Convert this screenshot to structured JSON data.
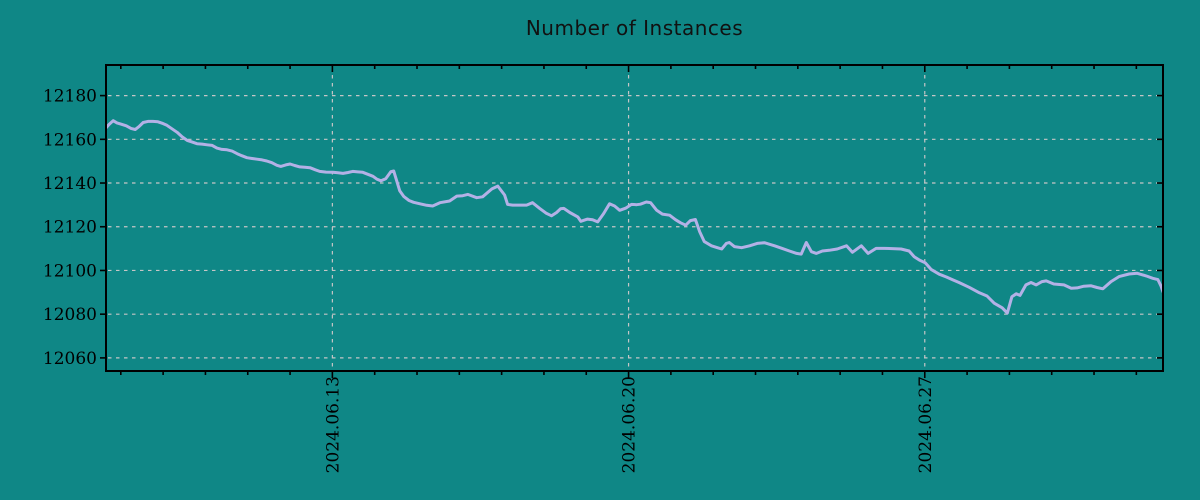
{
  "window": {
    "title": "Number of Instances"
  },
  "style": {
    "background_color": "#0f8786",
    "line_color": "#b3b1e6",
    "grid_color": "#c6c6c6",
    "axis_color": "#000000",
    "title_color": "#111111"
  },
  "chart_data": {
    "type": "line",
    "title": "Number of Instances",
    "xlabel": "",
    "ylabel": "",
    "legend": "none",
    "grid": true,
    "y_axis": {
      "ticks": [
        12060,
        12080,
        12100,
        12120,
        12140,
        12160,
        12180
      ],
      "range": [
        12054,
        12194
      ]
    },
    "x_axis": {
      "major_ticks": [
        {
          "label": "2024.06.13",
          "day": 0
        },
        {
          "label": "2024.06.20",
          "day": 7
        },
        {
          "label": "2024.06.27",
          "day": 14
        }
      ],
      "minor_tick_every_days": 1,
      "range_days": [
        -5.35,
        19.63
      ]
    },
    "series": [
      {
        "name": "Number of Instances",
        "points": [
          [
            -5.35,
            12165.2
          ],
          [
            -5.28,
            12166.8
          ],
          [
            -5.18,
            12168.5
          ],
          [
            -5.09,
            12167.5
          ],
          [
            -4.99,
            12166.9
          ],
          [
            -4.87,
            12166.2
          ],
          [
            -4.76,
            12165.0
          ],
          [
            -4.66,
            12164.5
          ],
          [
            -4.57,
            12165.8
          ],
          [
            -4.47,
            12167.7
          ],
          [
            -4.36,
            12168.2
          ],
          [
            -4.24,
            12168.2
          ],
          [
            -4.12,
            12168.0
          ],
          [
            -4.0,
            12167.2
          ],
          [
            -3.91,
            12166.4
          ],
          [
            -3.79,
            12164.8
          ],
          [
            -3.67,
            12163.2
          ],
          [
            -3.55,
            12161.1
          ],
          [
            -3.43,
            12159.5
          ],
          [
            -3.32,
            12158.8
          ],
          [
            -3.2,
            12158.0
          ],
          [
            -3.08,
            12157.8
          ],
          [
            -2.96,
            12157.5
          ],
          [
            -2.84,
            12157.2
          ],
          [
            -2.73,
            12156.0
          ],
          [
            -2.61,
            12155.4
          ],
          [
            -2.49,
            12155.2
          ],
          [
            -2.37,
            12154.6
          ],
          [
            -2.25,
            12153.4
          ],
          [
            -2.14,
            12152.5
          ],
          [
            -2.02,
            12151.6
          ],
          [
            -1.9,
            12151.2
          ],
          [
            -1.78,
            12150.9
          ],
          [
            -1.66,
            12150.6
          ],
          [
            -1.55,
            12150.1
          ],
          [
            -1.43,
            12149.3
          ],
          [
            -1.31,
            12148.1
          ],
          [
            -1.22,
            12147.6
          ],
          [
            -1.1,
            12148.3
          ],
          [
            -1.0,
            12148.7
          ],
          [
            -0.89,
            12148.0
          ],
          [
            -0.77,
            12147.4
          ],
          [
            -0.65,
            12147.2
          ],
          [
            -0.53,
            12147.0
          ],
          [
            -0.41,
            12146.1
          ],
          [
            -0.3,
            12145.3
          ],
          [
            -0.15,
            12145.0
          ],
          [
            0.01,
            12144.9
          ],
          [
            0.13,
            12144.7
          ],
          [
            0.25,
            12144.4
          ],
          [
            0.37,
            12144.8
          ],
          [
            0.48,
            12145.3
          ],
          [
            0.6,
            12145.1
          ],
          [
            0.72,
            12144.9
          ],
          [
            0.84,
            12144.0
          ],
          [
            0.96,
            12143.1
          ],
          [
            1.05,
            12141.8
          ],
          [
            1.15,
            12141.0
          ],
          [
            1.26,
            12142.0
          ],
          [
            1.38,
            12145.2
          ],
          [
            1.45,
            12145.5
          ],
          [
            1.52,
            12141.0
          ],
          [
            1.59,
            12136.5
          ],
          [
            1.69,
            12133.8
          ],
          [
            1.81,
            12132.0
          ],
          [
            1.92,
            12131.2
          ],
          [
            2.07,
            12130.5
          ],
          [
            2.23,
            12129.8
          ],
          [
            2.37,
            12129.5
          ],
          [
            2.54,
            12131.0
          ],
          [
            2.77,
            12131.8
          ],
          [
            2.94,
            12134.0
          ],
          [
            3.08,
            12134.2
          ],
          [
            3.2,
            12134.8
          ],
          [
            3.41,
            12133.3
          ],
          [
            3.55,
            12133.7
          ],
          [
            3.77,
            12137.3
          ],
          [
            3.91,
            12138.6
          ],
          [
            4.07,
            12134.5
          ],
          [
            4.14,
            12130.2
          ],
          [
            4.26,
            12129.9
          ],
          [
            4.43,
            12129.9
          ],
          [
            4.59,
            12129.9
          ],
          [
            4.73,
            12131.0
          ],
          [
            4.9,
            12128.4
          ],
          [
            5.06,
            12126.1
          ],
          [
            5.18,
            12125.0
          ],
          [
            5.3,
            12126.5
          ],
          [
            5.39,
            12128.2
          ],
          [
            5.47,
            12128.4
          ],
          [
            5.61,
            12126.5
          ],
          [
            5.8,
            12124.5
          ],
          [
            5.87,
            12122.5
          ],
          [
            6.03,
            12123.5
          ],
          [
            6.15,
            12123.2
          ],
          [
            6.27,
            12122.2
          ],
          [
            6.41,
            12126.0
          ],
          [
            6.55,
            12130.5
          ],
          [
            6.67,
            12129.5
          ],
          [
            6.79,
            12127.5
          ],
          [
            6.93,
            12128.5
          ],
          [
            7.07,
            12130.2
          ],
          [
            7.19,
            12130.1
          ],
          [
            7.28,
            12130.3
          ],
          [
            7.42,
            12131.3
          ],
          [
            7.52,
            12131.0
          ],
          [
            7.66,
            12127.6
          ],
          [
            7.8,
            12125.8
          ],
          [
            7.97,
            12125.3
          ],
          [
            8.11,
            12123.2
          ],
          [
            8.23,
            12121.8
          ],
          [
            8.35,
            12120.7
          ],
          [
            8.46,
            12122.8
          ],
          [
            8.58,
            12123.3
          ],
          [
            8.68,
            12117.7
          ],
          [
            8.79,
            12113.2
          ],
          [
            8.96,
            12111.3
          ],
          [
            9.1,
            12110.4
          ],
          [
            9.2,
            12109.8
          ],
          [
            9.31,
            12112.4
          ],
          [
            9.38,
            12112.8
          ],
          [
            9.5,
            12110.9
          ],
          [
            9.67,
            12110.4
          ],
          [
            9.86,
            12111.3
          ],
          [
            10.04,
            12112.4
          ],
          [
            10.21,
            12112.7
          ],
          [
            10.45,
            12111.3
          ],
          [
            10.63,
            12110.1
          ],
          [
            10.8,
            12108.9
          ],
          [
            10.97,
            12107.8
          ],
          [
            11.08,
            12107.5
          ],
          [
            11.2,
            12112.8
          ],
          [
            11.32,
            12108.6
          ],
          [
            11.44,
            12107.8
          ],
          [
            11.58,
            12108.9
          ],
          [
            11.74,
            12109.2
          ],
          [
            11.93,
            12109.8
          ],
          [
            12.15,
            12111.3
          ],
          [
            12.29,
            12108.3
          ],
          [
            12.5,
            12111.3
          ],
          [
            12.66,
            12107.8
          ],
          [
            12.85,
            12110.1
          ],
          [
            13.04,
            12110.1
          ],
          [
            13.23,
            12110.0
          ],
          [
            13.44,
            12109.8
          ],
          [
            13.63,
            12108.9
          ],
          [
            13.75,
            12106.3
          ],
          [
            13.87,
            12104.8
          ],
          [
            14.01,
            12103.5
          ],
          [
            14.15,
            12100.5
          ],
          [
            14.34,
            12098.3
          ],
          [
            14.51,
            12097.0
          ],
          [
            14.65,
            12095.8
          ],
          [
            14.81,
            12094.5
          ],
          [
            15.05,
            12092.3
          ],
          [
            15.29,
            12089.8
          ],
          [
            15.47,
            12088.3
          ],
          [
            15.64,
            12085.0
          ],
          [
            15.83,
            12082.9
          ],
          [
            15.95,
            12080.5
          ],
          [
            16.06,
            12088.0
          ],
          [
            16.16,
            12089.3
          ],
          [
            16.25,
            12088.6
          ],
          [
            16.39,
            12093.4
          ],
          [
            16.51,
            12094.5
          ],
          [
            16.63,
            12093.4
          ],
          [
            16.77,
            12094.9
          ],
          [
            16.87,
            12095.2
          ],
          [
            17.05,
            12093.8
          ],
          [
            17.29,
            12093.4
          ],
          [
            17.46,
            12091.9
          ],
          [
            17.6,
            12092.0
          ],
          [
            17.76,
            12092.8
          ],
          [
            17.93,
            12093.0
          ],
          [
            18.07,
            12092.2
          ],
          [
            18.21,
            12091.6
          ],
          [
            18.4,
            12094.9
          ],
          [
            18.59,
            12097.2
          ],
          [
            18.83,
            12098.4
          ],
          [
            19.02,
            12098.7
          ],
          [
            19.23,
            12097.5
          ],
          [
            19.39,
            12096.4
          ],
          [
            19.51,
            12095.8
          ],
          [
            19.58,
            12093.0
          ],
          [
            19.63,
            12090.2
          ]
        ]
      }
    ]
  }
}
